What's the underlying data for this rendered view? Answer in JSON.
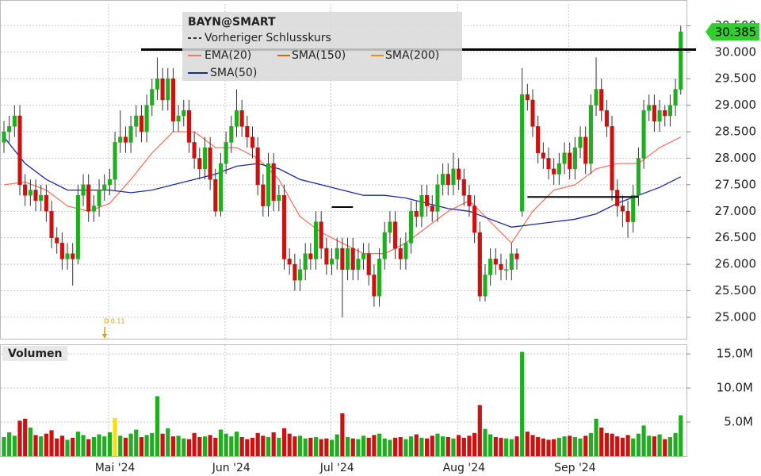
{
  "chart_data": {
    "type": "candlestick",
    "title": "BAYN@SMART",
    "legend": [
      "Vorheriger Schlusskurs",
      "EMA(20)",
      "SMA(150)",
      "SMA(200)",
      "SMA(50)"
    ],
    "volume_title": "Volumen",
    "up_color": "#1fae1f",
    "down_color": "#cc1111",
    "categories": [
      null,
      null,
      null,
      null,
      null,
      null,
      null,
      null,
      null,
      null,
      null,
      null,
      null,
      null,
      null,
      null,
      null,
      null,
      null,
      null,
      null,
      "Mai '24",
      null,
      null,
      null,
      null,
      null,
      null,
      null,
      null,
      null,
      null,
      null,
      null,
      null,
      null,
      null,
      null,
      null,
      null,
      null,
      null,
      null,
      "Jun '24",
      null,
      null,
      null,
      null,
      null,
      null,
      null,
      null,
      null,
      null,
      null,
      null,
      null,
      null,
      null,
      null,
      null,
      null,
      null,
      "Jul '24",
      null,
      null,
      null,
      null,
      null,
      null,
      null,
      null,
      null,
      null,
      null,
      null,
      null,
      null,
      null,
      null,
      null,
      null,
      null,
      null,
      null,
      null,
      null,
      "Aug '24",
      null,
      null,
      null,
      null,
      null,
      null,
      null,
      null,
      null,
      null,
      null,
      null,
      null,
      null,
      null,
      null,
      null,
      null,
      null,
      null,
      "Sep '24",
      null,
      null,
      null,
      null,
      null,
      null,
      null,
      null,
      null,
      null,
      null,
      null,
      null,
      null,
      null,
      null,
      null,
      null,
      null,
      null
    ],
    "open": [
      28.3,
      28.5,
      28.6,
      28.8,
      27.5,
      27.3,
      27.4,
      27.2,
      27.3,
      27.0,
      26.5,
      26.4,
      26.1,
      26.2,
      26.1,
      27.3,
      27.5,
      27.0,
      27.1,
      27.4,
      27.5,
      27.6,
      28.3,
      28.4,
      28.3,
      28.6,
      28.8,
      28.5,
      29.0,
      29.3,
      29.5,
      29.1,
      29.5,
      28.7,
      28.8,
      28.9,
      28.3,
      28.0,
      27.8,
      28.2,
      27.6,
      27.0,
      27.9,
      28.3,
      28.6,
      28.9,
      28.6,
      28.4,
      28.2,
      27.5,
      27.1,
      27.9,
      27.2,
      27.3,
      26.1,
      26.0,
      25.7,
      25.9,
      26.2,
      26.1,
      26.8,
      26.3,
      26.0,
      26.1,
      26.3,
      25.9,
      26.3,
      25.9,
      26.1,
      26.2,
      25.8,
      25.4,
      26.1,
      26.6,
      26.8,
      26.3,
      26.1,
      26.4,
      27.0,
      26.9,
      27.3,
      27.1,
      27.0,
      27.5,
      27.7,
      27.5,
      27.8,
      27.6,
      27.3,
      27.1,
      26.6,
      25.4,
      25.8,
      26.1,
      26.0,
      25.9,
      25.9,
      26.2,
      27.0,
      29.2,
      29.1,
      28.6,
      28.1,
      28.0,
      27.8,
      27.7,
      27.9,
      28.1,
      27.8,
      28.2,
      28.4,
      27.9,
      29.0,
      29.3,
      28.9,
      28.6,
      27.4,
      27.1,
      27.0,
      26.8,
      27.3,
      28.0,
      28.9,
      29.0,
      28.7,
      28.9,
      28.8,
      29.0,
      29.3
    ],
    "high": [
      28.7,
      28.8,
      29.0,
      29.0,
      27.7,
      27.6,
      27.6,
      27.5,
      27.5,
      27.2,
      26.7,
      26.6,
      26.4,
      26.4,
      27.5,
      27.7,
      27.7,
      27.3,
      27.6,
      27.7,
      27.8,
      28.5,
      28.9,
      28.6,
      28.8,
      29.0,
      29.0,
      29.2,
      29.5,
      29.9,
      29.7,
      29.7,
      29.7,
      29.0,
      29.1,
      29.1,
      28.5,
      28.2,
      28.4,
      28.4,
      27.8,
      28.1,
      28.5,
      28.8,
      29.3,
      29.1,
      28.8,
      28.6,
      28.4,
      27.7,
      28.1,
      28.1,
      27.5,
      27.5,
      26.3,
      26.2,
      26.1,
      26.4,
      26.4,
      27.0,
      27.0,
      26.5,
      26.3,
      26.5,
      26.5,
      26.5,
      26.5,
      26.3,
      26.4,
      26.4,
      26.0,
      26.3,
      26.8,
      27.0,
      27.0,
      26.5,
      26.6,
      27.2,
      27.2,
      27.5,
      27.5,
      27.3,
      27.7,
      27.9,
      27.9,
      28.1,
      28.0,
      27.8,
      27.5,
      27.3,
      26.8,
      26.0,
      26.3,
      26.3,
      26.2,
      26.1,
      26.4,
      26.3,
      29.7,
      29.4,
      29.3,
      28.8,
      28.3,
      28.2,
      28.0,
      28.1,
      28.3,
      28.3,
      28.4,
      28.6,
      28.6,
      29.2,
      29.9,
      29.5,
      29.1,
      28.8,
      27.6,
      27.3,
      27.2,
      27.5,
      28.2,
      29.1,
      29.2,
      29.2,
      29.1,
      29.0,
      29.2,
      29.5,
      30.5
    ],
    "low": [
      28.1,
      28.3,
      28.4,
      27.3,
      27.1,
      27.1,
      27.0,
      27.0,
      26.8,
      26.3,
      26.2,
      25.9,
      25.9,
      25.6,
      26.0,
      27.1,
      26.8,
      26.8,
      26.9,
      27.2,
      27.3,
      27.4,
      28.1,
      28.1,
      28.1,
      28.4,
      28.3,
      28.3,
      28.8,
      29.1,
      28.9,
      28.9,
      28.5,
      28.5,
      28.6,
      28.1,
      27.8,
      27.6,
      27.6,
      27.4,
      26.9,
      26.9,
      27.7,
      28.1,
      28.4,
      28.4,
      28.2,
      28.0,
      27.3,
      26.9,
      26.9,
      27.0,
      27.0,
      25.9,
      25.8,
      25.5,
      25.5,
      25.7,
      25.9,
      25.9,
      26.1,
      25.8,
      25.8,
      25.9,
      25.0,
      25.7,
      25.7,
      25.7,
      25.9,
      25.6,
      25.2,
      25.2,
      25.9,
      26.4,
      26.1,
      25.9,
      25.9,
      26.2,
      26.7,
      26.7,
      26.9,
      26.8,
      26.8,
      27.3,
      27.3,
      27.3,
      27.4,
      27.1,
      26.9,
      26.4,
      25.3,
      25.3,
      25.6,
      25.8,
      25.7,
      25.7,
      25.7,
      25.9,
      26.9,
      28.9,
      28.4,
      27.9,
      27.8,
      27.6,
      27.5,
      27.5,
      27.7,
      27.6,
      27.6,
      28.0,
      27.7,
      27.7,
      28.8,
      28.7,
      28.4,
      27.2,
      26.9,
      26.7,
      26.5,
      26.6,
      27.1,
      27.8,
      28.7,
      28.5,
      28.5,
      28.6,
      28.6,
      28.8,
      29.2
    ],
    "close": [
      28.5,
      28.6,
      28.8,
      27.5,
      27.3,
      27.4,
      27.2,
      27.3,
      27.0,
      26.5,
      26.4,
      26.1,
      26.2,
      26.1,
      27.3,
      27.5,
      27.0,
      27.1,
      27.4,
      27.5,
      27.6,
      28.3,
      28.4,
      28.3,
      28.6,
      28.8,
      28.5,
      29.0,
      29.3,
      29.5,
      29.1,
      29.5,
      28.7,
      28.8,
      28.9,
      28.3,
      28.0,
      27.8,
      28.2,
      27.6,
      27.0,
      27.9,
      28.3,
      28.6,
      28.9,
      28.6,
      28.4,
      28.2,
      27.5,
      27.1,
      27.9,
      27.2,
      27.3,
      26.1,
      26.0,
      25.7,
      25.9,
      26.2,
      26.1,
      26.8,
      26.3,
      26.0,
      26.1,
      26.3,
      25.9,
      26.3,
      25.9,
      26.1,
      26.2,
      25.8,
      25.4,
      26.1,
      26.6,
      26.8,
      26.3,
      26.1,
      26.4,
      27.0,
      26.9,
      27.3,
      27.1,
      27.0,
      27.5,
      27.7,
      27.5,
      27.8,
      27.6,
      27.3,
      27.1,
      26.6,
      25.4,
      25.8,
      26.1,
      26.0,
      25.9,
      25.9,
      26.2,
      26.1,
      29.2,
      29.1,
      28.6,
      28.1,
      28.0,
      27.8,
      27.7,
      27.9,
      28.1,
      27.8,
      28.2,
      28.4,
      27.9,
      29.0,
      29.3,
      28.9,
      28.6,
      27.4,
      27.1,
      27.0,
      26.8,
      27.3,
      28.0,
      28.9,
      29.0,
      28.7,
      28.9,
      28.8,
      29.0,
      29.3,
      30.385
    ],
    "volume": [
      2.8,
      3.5,
      3.0,
      5.2,
      5.5,
      4.2,
      3.1,
      2.9,
      3.3,
      3.8,
      2.6,
      3.0,
      2.4,
      2.7,
      3.6,
      3.1,
      2.5,
      2.8,
      3.2,
      2.9,
      3.5,
      5.6,
      3.0,
      2.7,
      3.3,
      3.9,
      2.8,
      3.1,
      3.4,
      8.8,
      3.3,
      4.1,
      2.9,
      3.0,
      2.6,
      2.5,
      3.4,
      2.8,
      2.9,
      3.1,
      2.7,
      3.9,
      3.3,
      2.9,
      3.6,
      2.8,
      2.5,
      2.7,
      3.4,
      3.0,
      2.8,
      3.5,
      2.7,
      4.1,
      3.3,
      2.9,
      3.0,
      2.6,
      2.7,
      2.8,
      2.5,
      2.6,
      2.4,
      3.2,
      6.3,
      2.8,
      2.6,
      2.5,
      3.0,
      2.7,
      3.1,
      3.3,
      2.6,
      2.4,
      2.7,
      2.8,
      2.5,
      2.9,
      3.2,
      2.7,
      2.6,
      3.0,
      3.3,
      2.9,
      2.8,
      2.6,
      3.1,
      2.7,
      3.0,
      3.4,
      7.5,
      4.0,
      3.2,
      2.8,
      2.7,
      2.6,
      2.5,
      2.9,
      15.3,
      3.6,
      3.1,
      2.8,
      2.6,
      2.4,
      2.5,
      2.7,
      2.9,
      3.0,
      2.8,
      2.6,
      3.0,
      3.4,
      5.5,
      4.2,
      3.4,
      3.3,
      2.9,
      2.7,
      3.1,
      2.6,
      3.3,
      4.5,
      3.0,
      2.9,
      3.2,
      2.5,
      2.8,
      3.4,
      6.0
    ],
    "indicators": [
      {
        "name": "EMA(20)",
        "color": "#f07868",
        "x": [
          0,
          4,
          8,
          12,
          16,
          20,
          24,
          28,
          32,
          36,
          40,
          44,
          48,
          52,
          56,
          60,
          64,
          68,
          72,
          76,
          80,
          84,
          88,
          92,
          96,
          100,
          104,
          108,
          112,
          116,
          120,
          124,
          128
        ],
        "values": [
          27.5,
          27.55,
          27.4,
          27.1,
          27.0,
          27.15,
          27.6,
          28.1,
          28.5,
          28.5,
          28.2,
          28.2,
          28.0,
          27.6,
          26.9,
          26.6,
          26.4,
          26.2,
          26.2,
          26.4,
          26.7,
          27.0,
          27.2,
          26.8,
          26.4,
          27.0,
          27.4,
          27.5,
          27.8,
          27.9,
          27.9,
          28.2,
          28.4
        ]
      },
      {
        "name": "SMA(150)",
        "color": "#cc6a10"
      },
      {
        "name": "SMA(200)",
        "color": "#e8901c"
      },
      {
        "name": "SMA(50)",
        "color": "#1c2aa0",
        "x": [
          0,
          4,
          8,
          12,
          16,
          20,
          24,
          28,
          32,
          36,
          40,
          44,
          48,
          52,
          56,
          60,
          64,
          68,
          72,
          76,
          80,
          84,
          88,
          92,
          96,
          100,
          104,
          108,
          112,
          116,
          120,
          124,
          128
        ],
        "values": [
          28.4,
          27.9,
          27.6,
          27.4,
          27.4,
          27.4,
          27.35,
          27.4,
          27.5,
          27.6,
          27.7,
          27.85,
          27.9,
          27.8,
          27.6,
          27.5,
          27.4,
          27.3,
          27.3,
          27.25,
          27.15,
          27.05,
          27.0,
          26.85,
          26.7,
          26.75,
          26.8,
          26.85,
          26.95,
          27.15,
          27.3,
          27.45,
          27.65
        ]
      }
    ],
    "previous_close": 30.05,
    "drawings": [
      {
        "x": [
          62,
          66
        ],
        "y": [
          27.08,
          27.08
        ]
      },
      {
        "x": [
          99,
          120
        ],
        "y": [
          27.27,
          27.27
        ]
      }
    ],
    "dividend": {
      "index": 21,
      "label": "D 0.11",
      "color": "#ffe000"
    },
    "ylim": [
      24.58,
      30.91
    ],
    "yticks": [
      {
        "value": 25,
        "label": "25.000"
      },
      {
        "value": 25.5,
        "label": "25.500"
      },
      {
        "value": 26,
        "label": "26.000"
      },
      {
        "value": 26.5,
        "label": "26.500"
      },
      {
        "value": 27,
        "label": "27.000"
      },
      {
        "value": 27.5,
        "label": "27.500"
      },
      {
        "value": 28,
        "label": "28.000"
      },
      {
        "value": 28.5,
        "label": "28.500"
      },
      {
        "value": 29,
        "label": "29.000"
      },
      {
        "value": 29.5,
        "label": "29.500"
      },
      {
        "value": 30,
        "label": "30.000"
      },
      {
        "value": 30.5,
        "label": "30.500"
      }
    ],
    "volume_ylim": [
      0,
      16.3
    ],
    "volume_ticks": [
      {
        "value": 5,
        "label": "5.0M"
      },
      {
        "value": 10,
        "label": "10.0M"
      },
      {
        "value": 15,
        "label": "15.0M"
      }
    ],
    "grid": true
  }
}
